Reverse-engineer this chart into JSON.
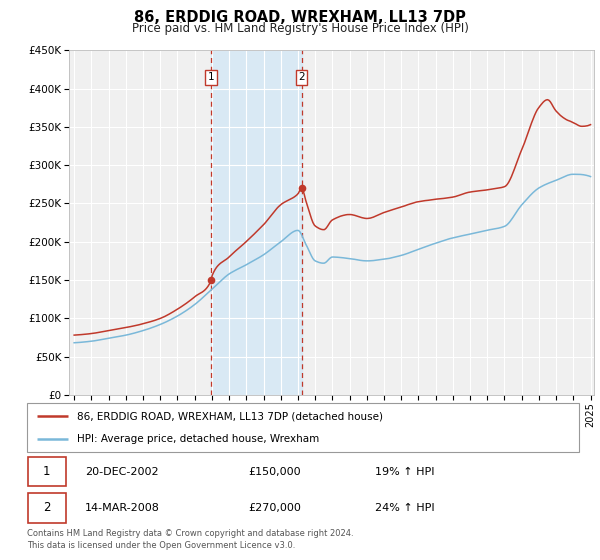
{
  "title": "86, ERDDIG ROAD, WREXHAM, LL13 7DP",
  "subtitle": "Price paid vs. HM Land Registry's House Price Index (HPI)",
  "ylim": [
    0,
    450000
  ],
  "yticks": [
    0,
    50000,
    100000,
    150000,
    200000,
    250000,
    300000,
    350000,
    400000,
    450000
  ],
  "ytick_labels": [
    "£0",
    "£50K",
    "£100K",
    "£150K",
    "£200K",
    "£250K",
    "£300K",
    "£350K",
    "£400K",
    "£450K"
  ],
  "hpi_color": "#7ab8d9",
  "price_color": "#c0392b",
  "shade_color": "#d6e8f5",
  "dashed_line_color": "#c0392b",
  "background_color": "#f0f0f0",
  "grid_color": "#ffffff",
  "sale1_date_num": 2002.97,
  "sale1_price": 150000,
  "sale2_date_num": 2008.21,
  "sale2_price": 270000,
  "legend_line1": "86, ERDDIG ROAD, WREXHAM, LL13 7DP (detached house)",
  "legend_line2": "HPI: Average price, detached house, Wrexham",
  "table_row1": [
    "1",
    "20-DEC-2002",
    "£150,000",
    "19% ↑ HPI"
  ],
  "table_row2": [
    "2",
    "14-MAR-2008",
    "£270,000",
    "24% ↑ HPI"
  ],
  "footnote": "Contains HM Land Registry data © Crown copyright and database right 2024.\nThis data is licensed under the Open Government Licence v3.0.",
  "xstart": 1995,
  "xend": 2025
}
